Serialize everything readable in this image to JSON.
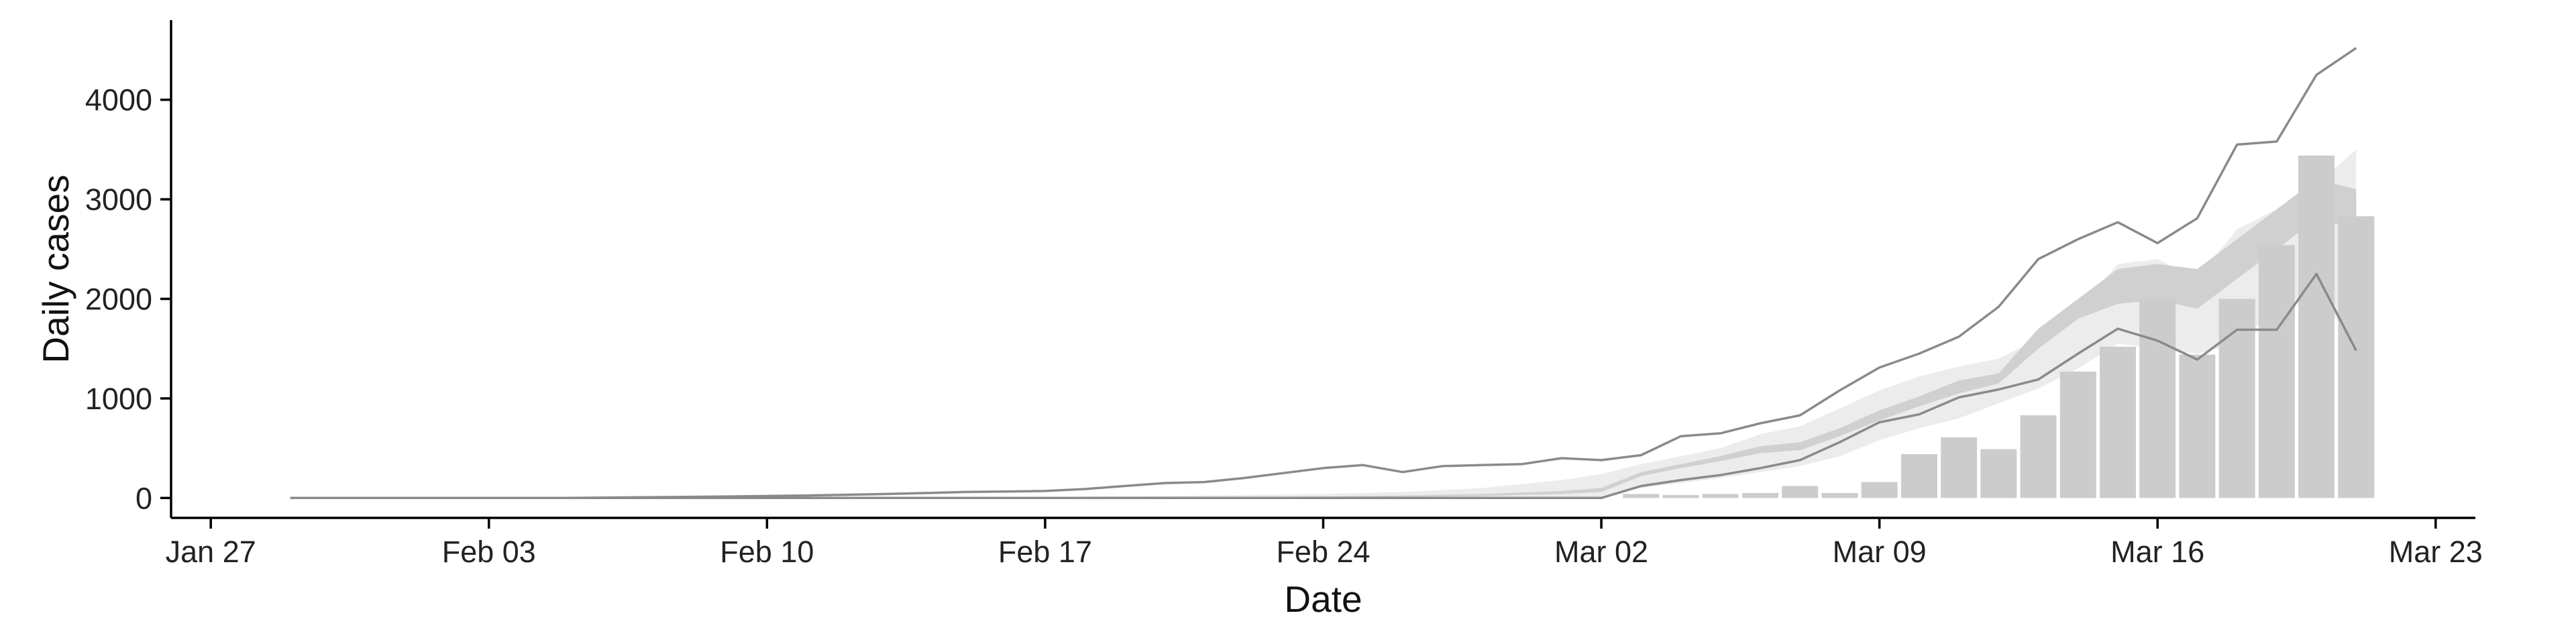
{
  "chart_data": {
    "type": "bar",
    "xlabel": "Date",
    "ylabel": "Daily cases",
    "ylim": [
      -200,
      4800
    ],
    "xlim": [
      "2020-01-26",
      "2020-03-24"
    ],
    "x_ticks": [
      {
        "date": "2020-01-27",
        "label": "Jan 27"
      },
      {
        "date": "2020-02-03",
        "label": "Feb 03"
      },
      {
        "date": "2020-02-10",
        "label": "Feb 10"
      },
      {
        "date": "2020-02-17",
        "label": "Feb 17"
      },
      {
        "date": "2020-02-24",
        "label": "Feb 24"
      },
      {
        "date": "2020-03-02",
        "label": "Mar 02"
      },
      {
        "date": "2020-03-09",
        "label": "Mar 09"
      },
      {
        "date": "2020-03-16",
        "label": "Mar 16"
      },
      {
        "date": "2020-03-23",
        "label": "Mar 23"
      }
    ],
    "y_ticks": [
      0,
      1000,
      2000,
      3000,
      4000
    ],
    "grid": false,
    "colors": {
      "bars": "#cccccc",
      "outer_band": "#ececec",
      "inner_band": "#d0d0d0",
      "bound_lines": "#8a8a8a",
      "axis": "#000000"
    },
    "series": [
      {
        "type": "bar",
        "x": [
          "2020-03-03",
          "2020-03-04",
          "2020-03-05",
          "2020-03-06",
          "2020-03-07",
          "2020-03-08",
          "2020-03-09",
          "2020-03-10",
          "2020-03-11",
          "2020-03-12",
          "2020-03-13",
          "2020-03-14",
          "2020-03-15",
          "2020-03-16",
          "2020-03-17",
          "2020-03-18",
          "2020-03-19",
          "2020-03-20",
          "2020-03-21"
        ],
        "values": [
          40,
          30,
          40,
          50,
          120,
          50,
          160,
          440,
          610,
          490,
          830,
          1270,
          1520,
          2000,
          1440,
          2000,
          2540,
          3440,
          2830
        ]
      },
      {
        "type": "band",
        "x": [
          "2020-01-29",
          "2020-02-05",
          "2020-02-10",
          "2020-02-15",
          "2020-02-20",
          "2020-02-24",
          "2020-02-26",
          "2020-02-28",
          "2020-03-01",
          "2020-03-02",
          "2020-03-03",
          "2020-03-04",
          "2020-03-05",
          "2020-03-06",
          "2020-03-07",
          "2020-03-08",
          "2020-03-09",
          "2020-03-10",
          "2020-03-11",
          "2020-03-12",
          "2020-03-13",
          "2020-03-14",
          "2020-03-15",
          "2020-03-16",
          "2020-03-17",
          "2020-03-18",
          "2020-03-19",
          "2020-03-20",
          "2020-03-21"
        ],
        "lower": [
          0,
          0,
          0,
          0,
          0,
          0,
          0,
          0,
          0,
          0,
          100,
          150,
          200,
          260,
          320,
          420,
          580,
          700,
          800,
          950,
          1100,
          1300,
          1550,
          1500,
          1450,
          1550,
          1900,
          2100,
          1500
        ],
        "upper": [
          0,
          0,
          0,
          5,
          20,
          40,
          60,
          100,
          180,
          240,
          340,
          420,
          500,
          640,
          720,
          900,
          1080,
          1220,
          1320,
          1400,
          1600,
          1900,
          2350,
          2400,
          2200,
          2700,
          2900,
          3150,
          3500
        ]
      },
      {
        "type": "band",
        "x": [
          "2020-01-29",
          "2020-02-05",
          "2020-02-10",
          "2020-02-15",
          "2020-02-20",
          "2020-02-24",
          "2020-02-26",
          "2020-02-28",
          "2020-03-01",
          "2020-03-02",
          "2020-03-03",
          "2020-03-04",
          "2020-03-05",
          "2020-03-06",
          "2020-03-07",
          "2020-03-08",
          "2020-03-09",
          "2020-03-10",
          "2020-03-11",
          "2020-03-12",
          "2020-03-13",
          "2020-03-14",
          "2020-03-15",
          "2020-03-16",
          "2020-03-17",
          "2020-03-18",
          "2020-03-19",
          "2020-03-20",
          "2020-03-21"
        ],
        "lower": [
          0,
          0,
          0,
          0,
          0,
          5,
          10,
          20,
          40,
          60,
          220,
          300,
          370,
          450,
          480,
          620,
          780,
          920,
          1050,
          1150,
          1500,
          1800,
          1950,
          1990,
          1900,
          2200,
          2500,
          2800,
          2700
        ],
        "upper": [
          0,
          0,
          0,
          0,
          5,
          15,
          25,
          40,
          70,
          100,
          260,
          340,
          420,
          520,
          560,
          700,
          880,
          1020,
          1180,
          1250,
          1700,
          2000,
          2300,
          2350,
          2300,
          2600,
          2900,
          3200,
          3100
        ]
      },
      {
        "type": "line",
        "name": "upper",
        "x": [
          "2020-01-29",
          "2020-02-05",
          "2020-02-09",
          "2020-02-11",
          "2020-02-13",
          "2020-02-15",
          "2020-02-17",
          "2020-02-18",
          "2020-02-19",
          "2020-02-20",
          "2020-02-21",
          "2020-02-22",
          "2020-02-23",
          "2020-02-24",
          "2020-02-25",
          "2020-02-26",
          "2020-02-27",
          "2020-02-28",
          "2020-02-29",
          "2020-03-01",
          "2020-03-02",
          "2020-03-03",
          "2020-03-04",
          "2020-03-05",
          "2020-03-06",
          "2020-03-07",
          "2020-03-08",
          "2020-03-09",
          "2020-03-10",
          "2020-03-11",
          "2020-03-12",
          "2020-03-13",
          "2020-03-14",
          "2020-03-15",
          "2020-03-16",
          "2020-03-17",
          "2020-03-18",
          "2020-03-19",
          "2020-03-20",
          "2020-03-21"
        ],
        "values": [
          0,
          0,
          15,
          25,
          40,
          60,
          70,
          90,
          120,
          150,
          160,
          200,
          250,
          300,
          330,
          260,
          320,
          330,
          340,
          400,
          380,
          430,
          620,
          650,
          750,
          830,
          1080,
          1310,
          1450,
          1620,
          1920,
          2400,
          2600,
          2770,
          2560,
          2810,
          3550,
          3580,
          4250,
          4520
        ]
      },
      {
        "type": "line",
        "name": "lower",
        "x": [
          "2020-01-29",
          "2020-02-05",
          "2020-02-10",
          "2020-02-15",
          "2020-02-20",
          "2020-02-25",
          "2020-03-01",
          "2020-03-02",
          "2020-03-03",
          "2020-03-04",
          "2020-03-05",
          "2020-03-06",
          "2020-03-07",
          "2020-03-08",
          "2020-03-09",
          "2020-03-10",
          "2020-03-11",
          "2020-03-12",
          "2020-03-13",
          "2020-03-14",
          "2020-03-15",
          "2020-03-16",
          "2020-03-17",
          "2020-03-18",
          "2020-03-19",
          "2020-03-20",
          "2020-03-21"
        ],
        "values": [
          0,
          0,
          0,
          0,
          0,
          0,
          0,
          0,
          120,
          180,
          230,
          300,
          380,
          560,
          760,
          840,
          1010,
          1090,
          1190,
          1450,
          1700,
          1580,
          1390,
          1690,
          1690,
          2250,
          1480
        ]
      }
    ]
  }
}
